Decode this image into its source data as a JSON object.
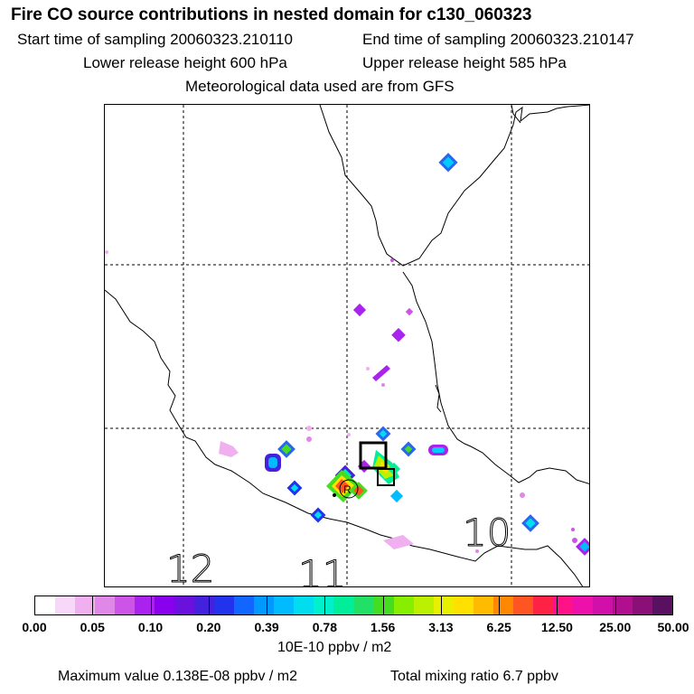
{
  "header": {
    "title": "Fire CO source contributions in nested domain for c130_060323",
    "start_time": "Start time of sampling 20060323.210110",
    "end_time": "End time of sampling 20060323.210147",
    "lower_height": "Lower release height  600 hPa",
    "upper_height": "Upper release height  585 hPa",
    "met_data": "Meteorological data used are from GFS"
  },
  "map": {
    "region_labels": [
      "12",
      "11",
      "10"
    ]
  },
  "colorbar": {
    "tick_labels": [
      "0.00",
      "0.05",
      "0.10",
      "0.20",
      "0.39",
      "0.78",
      "1.56",
      "3.13",
      "6.25",
      "12.50",
      "25.00",
      "50.00"
    ],
    "colors": [
      "#ffffff",
      "#f8d8f8",
      "#f0b0f0",
      "#e088e8",
      "#cc55e8",
      "#aa22ee",
      "#8800ee",
      "#6a11dd",
      "#4422dd",
      "#2233ee",
      "#1166ff",
      "#0099ff",
      "#00bbff",
      "#00ddee",
      "#00f0cc",
      "#00ee99",
      "#22e066",
      "#44dd22",
      "#88ee00",
      "#bbf000",
      "#e8f000",
      "#ffe000",
      "#ffbb00",
      "#ff8800",
      "#ff5522",
      "#ff2244",
      "#ff1188",
      "#ee10aa",
      "#d010a8",
      "#b0108e",
      "#8a1078",
      "#5a1060"
    ],
    "units": "10E-10 ppbv / m2"
  },
  "footer": {
    "maximum_value": "Maximum value  0.138E-08 ppbv / m2",
    "total_mixing": "Total mixing ratio       6.7 ppbv"
  }
}
